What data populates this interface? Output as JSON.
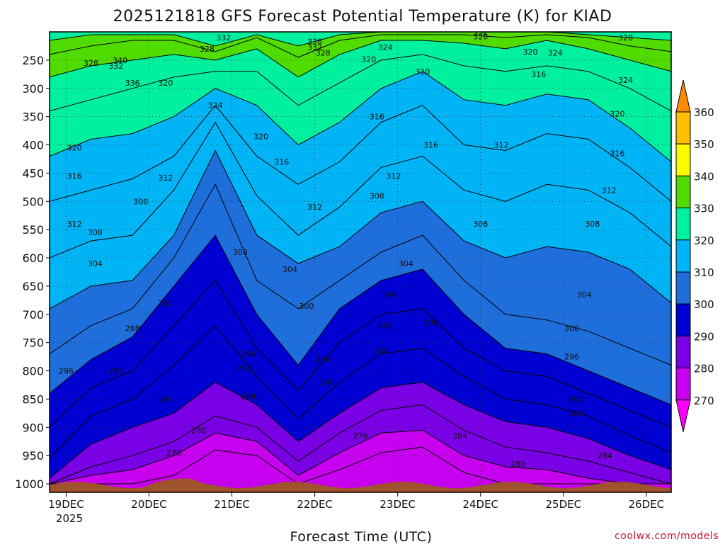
{
  "chart_data": {
    "type": "heatmap",
    "title": "2025121818 GFS Forecast Potential Temperature (K) for KIAD",
    "xlabel": "Forecast Time (UTC)",
    "ylabel": "",
    "credit": "coolwx.com/models",
    "x_ticks": [
      "19DEC",
      "20DEC",
      "21DEC",
      "22DEC",
      "23DEC",
      "24DEC",
      "25DEC",
      "26DEC"
    ],
    "x_year": "2025",
    "xlim_days": [
      0,
      7.5
    ],
    "y_ticks": [
      250,
      300,
      350,
      400,
      450,
      500,
      550,
      600,
      650,
      700,
      750,
      800,
      850,
      900,
      950,
      1000
    ],
    "ylim_hpa": [
      200,
      1015
    ],
    "colorbar": {
      "levels": [
        270,
        280,
        290,
        300,
        310,
        320,
        330,
        340,
        350,
        360
      ],
      "colors": [
        "#ff00ff",
        "#c800f0",
        "#7a00e6",
        "#0000d2",
        "#1e6edc",
        "#00b4f5",
        "#00f0a0",
        "#50dc00",
        "#fafa00",
        "#ffbe00",
        "#ff8c00"
      ]
    },
    "isentropes": [
      {
        "theta": 276,
        "p": [
          1000,
          1000,
          1000,
          985,
          940,
          950,
          1000,
          975,
          945,
          935,
          980,
          1000,
          1000,
          1000,
          1000,
          1000
        ]
      },
      {
        "theta": 280,
        "p": [
          1000,
          985,
          975,
          950,
          910,
          925,
          985,
          945,
          910,
          905,
          950,
          970,
          975,
          990,
          1000,
          1000
        ]
      },
      {
        "theta": 284,
        "p": [
          1000,
          970,
          950,
          925,
          880,
          900,
          960,
          910,
          870,
          860,
          905,
          935,
          945,
          960,
          980,
          1000
        ]
      },
      {
        "theta": 288,
        "p": [
          990,
          930,
          900,
          875,
          820,
          860,
          925,
          875,
          830,
          820,
          860,
          890,
          900,
          920,
          950,
          975
        ]
      },
      {
        "theta": 292,
        "p": [
          955,
          880,
          850,
          790,
          720,
          810,
          885,
          820,
          770,
          760,
          810,
          850,
          860,
          880,
          915,
          945
        ]
      },
      {
        "theta": 296,
        "p": [
          900,
          830,
          800,
          720,
          640,
          760,
          835,
          750,
          700,
          690,
          760,
          800,
          810,
          840,
          870,
          900
        ]
      },
      {
        "theta": 300,
        "p": [
          840,
          780,
          740,
          650,
          560,
          700,
          790,
          690,
          640,
          620,
          700,
          760,
          770,
          800,
          830,
          860
        ]
      },
      {
        "theta": 304,
        "p": [
          770,
          720,
          690,
          600,
          470,
          640,
          690,
          640,
          590,
          560,
          640,
          700,
          710,
          730,
          760,
          790
        ]
      },
      {
        "theta": 308,
        "p": [
          690,
          650,
          640,
          560,
          410,
          560,
          610,
          580,
          520,
          500,
          570,
          600,
          580,
          590,
          620,
          680
        ]
      },
      {
        "theta": 312,
        "p": [
          600,
          570,
          560,
          480,
          360,
          490,
          560,
          510,
          440,
          420,
          480,
          500,
          470,
          480,
          520,
          580
        ]
      },
      {
        "theta": 316,
        "p": [
          500,
          480,
          460,
          420,
          330,
          420,
          470,
          430,
          360,
          330,
          400,
          410,
          380,
          390,
          440,
          500
        ]
      },
      {
        "theta": 320,
        "p": [
          420,
          390,
          380,
          350,
          300,
          330,
          400,
          360,
          300,
          270,
          320,
          330,
          310,
          320,
          370,
          430
        ]
      },
      {
        "theta": 324,
        "p": [
          340,
          320,
          300,
          280,
          270,
          270,
          330,
          290,
          250,
          240,
          260,
          270,
          260,
          270,
          300,
          340
        ]
      },
      {
        "theta": 328,
        "p": [
          280,
          260,
          250,
          240,
          250,
          230,
          280,
          240,
          215,
          215,
          220,
          230,
          215,
          230,
          250,
          270
        ]
      },
      {
        "theta": 332,
        "p": [
          240,
          225,
          215,
          215,
          235,
          210,
          245,
          215,
          205,
          205,
          205,
          210,
          205,
          210,
          225,
          235
        ]
      },
      {
        "theta": 336,
        "p": [
          215,
          205,
          205,
          205,
          225,
          205,
          225,
          205,
          200,
          200,
          200,
          200,
          200,
          205,
          210,
          215
        ]
      }
    ],
    "contour_labels": [
      {
        "t": "328",
        "d": 0.5,
        "p": 260
      },
      {
        "t": "340",
        "d": 0.85,
        "p": 255
      },
      {
        "t": "332",
        "d": 0.8,
        "p": 265
      },
      {
        "t": "336",
        "d": 1.0,
        "p": 295
      },
      {
        "t": "320",
        "d": 1.4,
        "p": 295
      },
      {
        "t": "332",
        "d": 2.1,
        "p": 215
      },
      {
        "t": "328",
        "d": 1.9,
        "p": 235
      },
      {
        "t": "324",
        "d": 2.0,
        "p": 335
      },
      {
        "t": "320",
        "d": 2.55,
        "p": 390
      },
      {
        "t": "336",
        "d": 3.2,
        "p": 222
      },
      {
        "t": "332",
        "d": 3.2,
        "p": 232
      },
      {
        "t": "328",
        "d": 3.3,
        "p": 242
      },
      {
        "t": "320",
        "d": 3.85,
        "p": 253
      },
      {
        "t": "324",
        "d": 4.05,
        "p": 232
      },
      {
        "t": "320",
        "d": 4.5,
        "p": 275
      },
      {
        "t": "332",
        "d": 5.2,
        "p": 205
      },
      {
        "t": "328",
        "d": 5.2,
        "p": 213
      },
      {
        "t": "320",
        "d": 5.8,
        "p": 240
      },
      {
        "t": "324",
        "d": 6.1,
        "p": 242
      },
      {
        "t": "316",
        "d": 5.9,
        "p": 280
      },
      {
        "t": "328",
        "d": 6.95,
        "p": 215
      },
      {
        "t": "324",
        "d": 6.95,
        "p": 290
      },
      {
        "t": "320",
        "d": 6.85,
        "p": 350
      },
      {
        "t": "316",
        "d": 6.85,
        "p": 420
      },
      {
        "t": "316",
        "d": 3.95,
        "p": 355
      },
      {
        "t": "316",
        "d": 4.6,
        "p": 405
      },
      {
        "t": "312",
        "d": 5.45,
        "p": 405
      },
      {
        "t": "316",
        "d": 2.8,
        "p": 435
      },
      {
        "t": "316",
        "d": 0.3,
        "p": 460
      },
      {
        "t": "320",
        "d": 0.3,
        "p": 410
      },
      {
        "t": "312",
        "d": 1.4,
        "p": 463
      },
      {
        "t": "312",
        "d": 4.15,
        "p": 460
      },
      {
        "t": "312",
        "d": 6.75,
        "p": 485
      },
      {
        "t": "312",
        "d": 0.3,
        "p": 545
      },
      {
        "t": "308",
        "d": 0.55,
        "p": 560
      },
      {
        "t": "300",
        "d": 1.1,
        "p": 505
      },
      {
        "t": "312",
        "d": 3.2,
        "p": 515
      },
      {
        "t": "308",
        "d": 3.95,
        "p": 495
      },
      {
        "t": "308",
        "d": 5.2,
        "p": 545
      },
      {
        "t": "308",
        "d": 6.55,
        "p": 545
      },
      {
        "t": "308",
        "d": 2.3,
        "p": 595
      },
      {
        "t": "304",
        "d": 0.55,
        "p": 615
      },
      {
        "t": "304",
        "d": 2.9,
        "p": 625
      },
      {
        "t": "304",
        "d": 4.3,
        "p": 615
      },
      {
        "t": "304",
        "d": 6.45,
        "p": 670
      },
      {
        "t": "304",
        "d": 1.4,
        "p": 685
      },
      {
        "t": "300",
        "d": 3.1,
        "p": 690
      },
      {
        "t": "296",
        "d": 4.1,
        "p": 670
      },
      {
        "t": "300",
        "d": 4.6,
        "p": 720
      },
      {
        "t": "300",
        "d": 6.3,
        "p": 730
      },
      {
        "t": "292",
        "d": 4.05,
        "p": 725
      },
      {
        "t": "288",
        "d": 1.0,
        "p": 730
      },
      {
        "t": "296",
        "d": 2.4,
        "p": 775
      },
      {
        "t": "292",
        "d": 2.35,
        "p": 800
      },
      {
        "t": "288",
        "d": 4.0,
        "p": 770
      },
      {
        "t": "296",
        "d": 6.3,
        "p": 780
      },
      {
        "t": "284",
        "d": 3.3,
        "p": 785
      },
      {
        "t": "296",
        "d": 0.2,
        "p": 805
      },
      {
        "t": "292",
        "d": 0.8,
        "p": 805
      },
      {
        "t": "280",
        "d": 3.35,
        "p": 825
      },
      {
        "t": "288",
        "d": 2.4,
        "p": 850
      },
      {
        "t": "292",
        "d": 6.35,
        "p": 855
      },
      {
        "t": "288",
        "d": 6.35,
        "p": 880
      },
      {
        "t": "284",
        "d": 1.4,
        "p": 855
      },
      {
        "t": "280",
        "d": 1.8,
        "p": 910
      },
      {
        "t": "276",
        "d": 1.5,
        "p": 950
      },
      {
        "t": "276",
        "d": 3.75,
        "p": 920
      },
      {
        "t": "284",
        "d": 4.95,
        "p": 920
      },
      {
        "t": "280",
        "d": 5.65,
        "p": 970
      },
      {
        "t": "284",
        "d": 6.7,
        "p": 955
      }
    ]
  }
}
